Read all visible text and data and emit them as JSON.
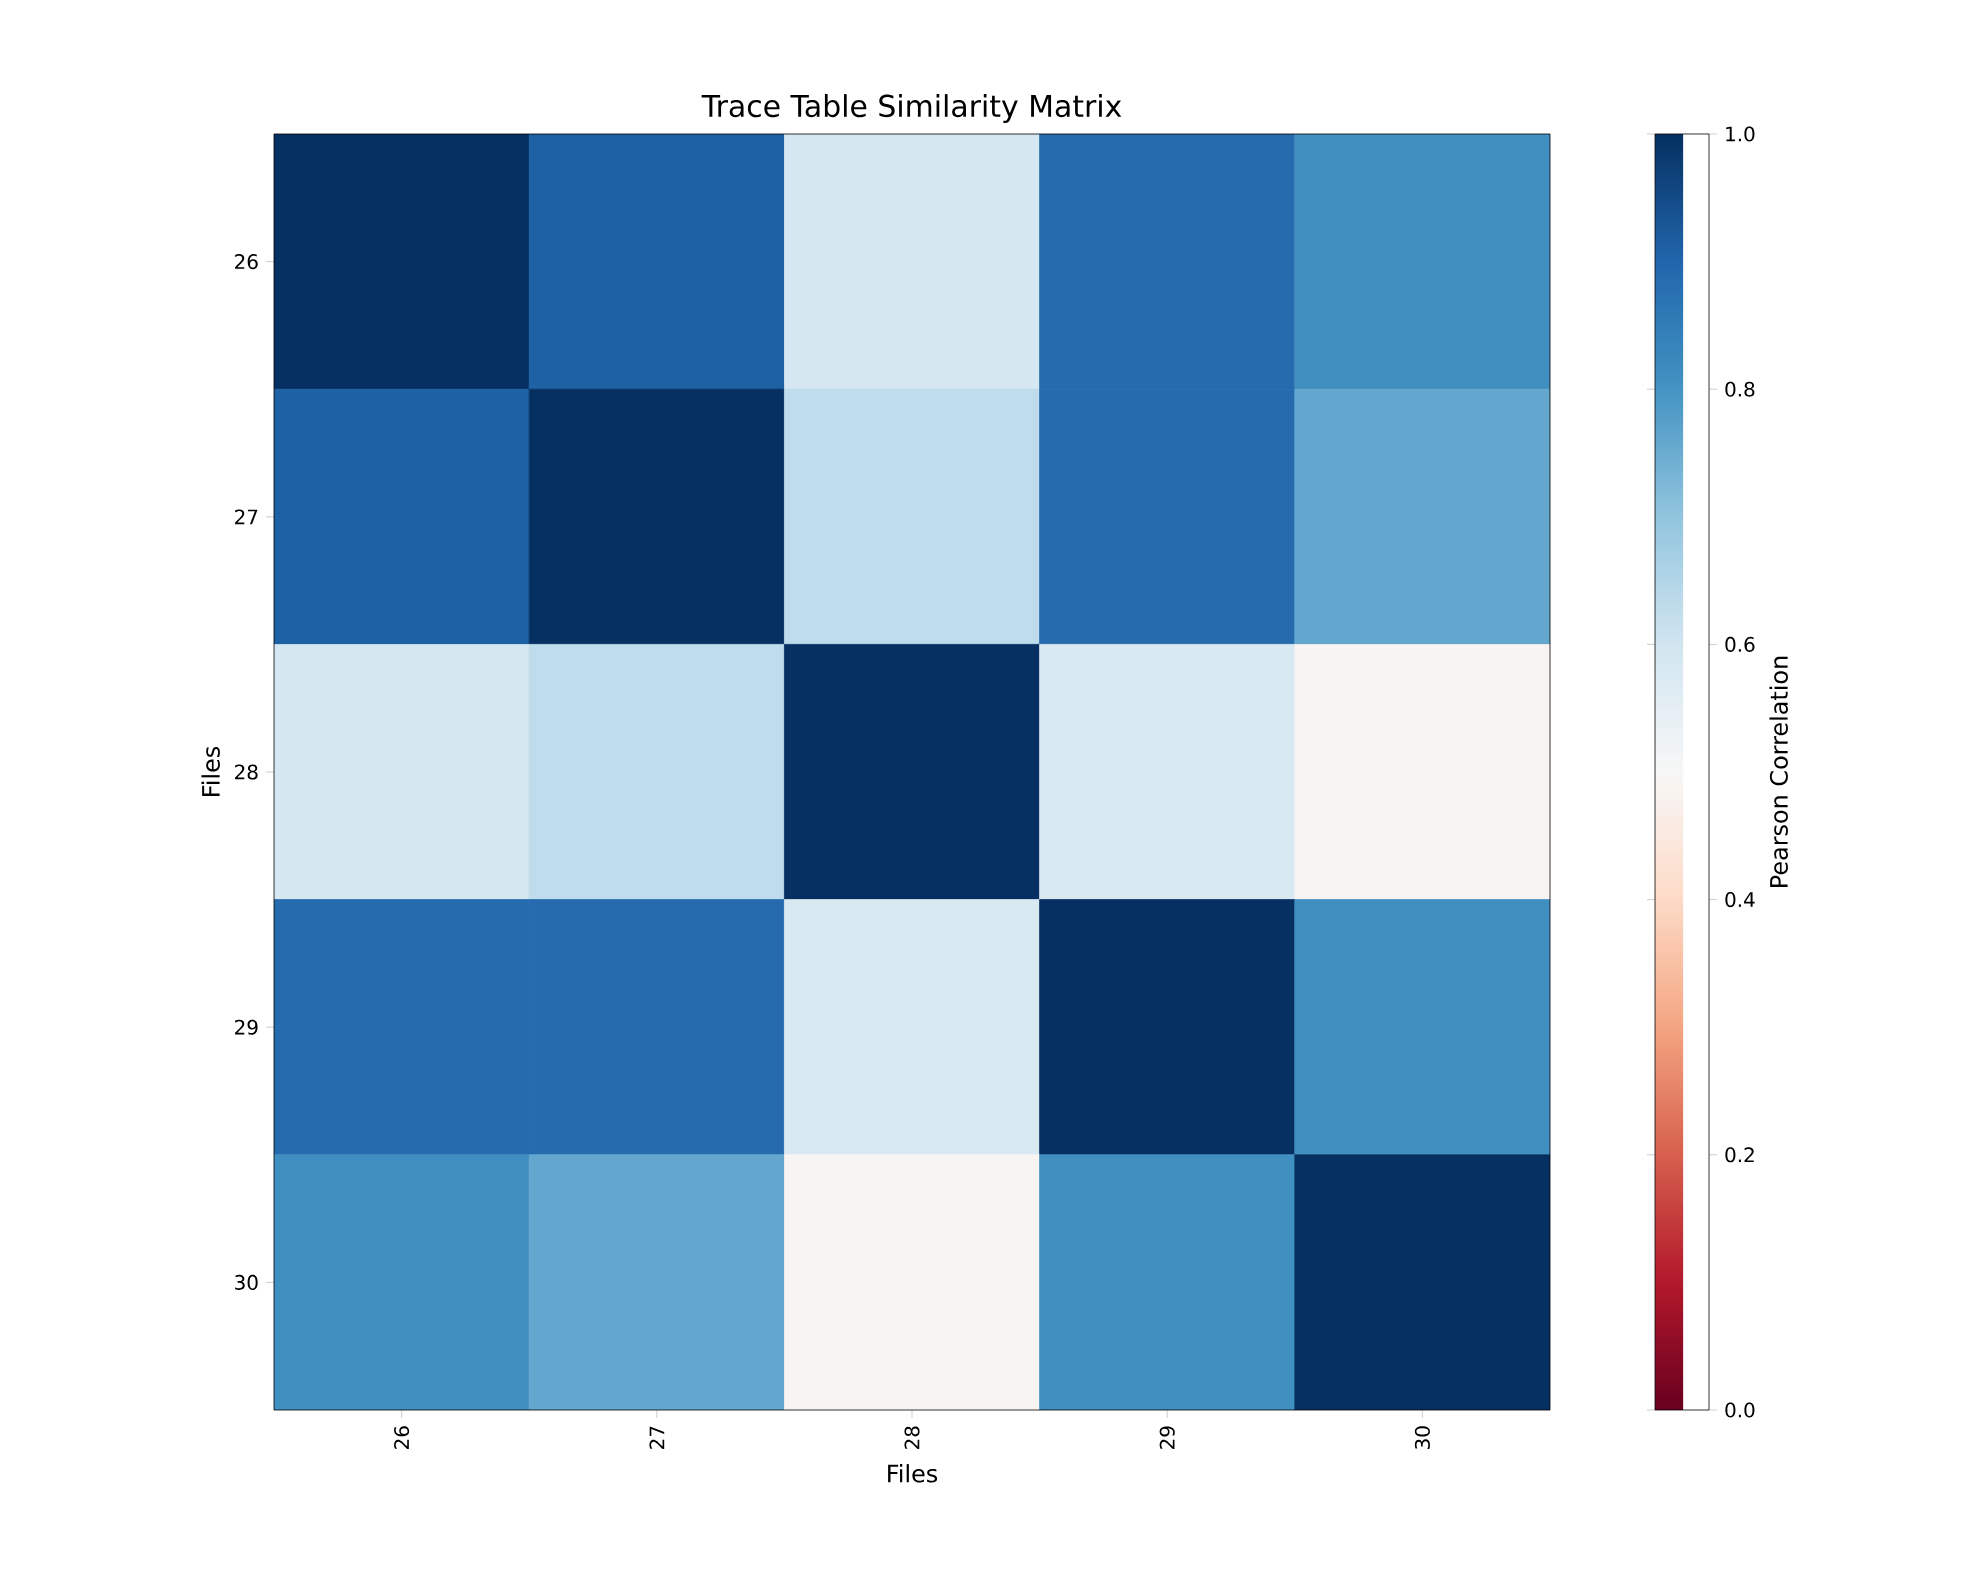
{
  "chart_data": {
    "type": "heatmap",
    "title": "Trace Table Similarity Matrix",
    "xlabel": "Files",
    "ylabel": "Files",
    "clabel": "Pearson Correlation",
    "categories": [
      "26",
      "27",
      "28",
      "29",
      "30"
    ],
    "y_categories": [
      "26",
      "27",
      "28",
      "29",
      "30"
    ],
    "cells": [
      [
        1.0,
        0.91,
        0.59,
        0.89,
        0.81
      ],
      [
        0.91,
        1.0,
        0.63,
        0.89,
        0.76
      ],
      [
        0.59,
        0.63,
        1.0,
        0.58,
        0.49
      ],
      [
        0.89,
        0.89,
        0.58,
        1.0,
        0.81
      ],
      [
        0.81,
        0.76,
        0.49,
        0.81,
        1.0
      ]
    ],
    "clim": [
      0,
      1
    ],
    "cticks": [
      {
        "value": 0,
        "label": "0.0"
      },
      0.2,
      0.4,
      0.6,
      0.8,
      {
        "value": 1,
        "label": "1.0"
      }
    ]
  }
}
